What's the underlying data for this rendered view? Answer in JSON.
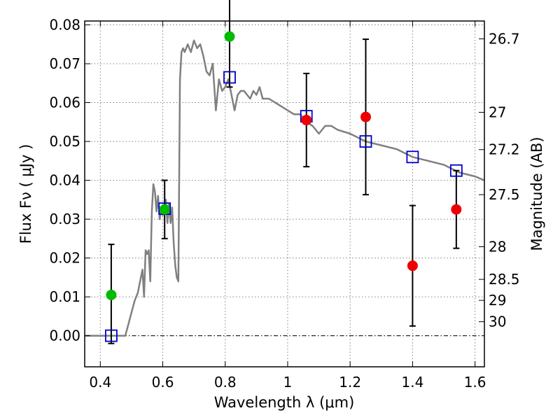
{
  "chart_data": {
    "type": "scatter",
    "title": "",
    "xlabel": "Wavelength  λ (μm)",
    "ylabel": "Flux  Fν  ( μJy )",
    "ylabel2": "Magnitude (AB)",
    "xlim": [
      0.35,
      1.63
    ],
    "ylim": [
      -0.008,
      0.081
    ],
    "xticks": [
      0.4,
      0.6,
      0.8,
      1.0,
      1.2,
      1.4,
      1.6
    ],
    "xtick_labels": [
      "0.4",
      "0.6",
      "0.8",
      "1",
      "1.2",
      "1.4",
      "1.6"
    ],
    "yticks": [
      0.0,
      0.01,
      0.02,
      0.03,
      0.04,
      0.05,
      0.06,
      0.07,
      0.08
    ],
    "ytick_labels": [
      "0.00",
      "0.01",
      "0.02",
      "0.03",
      "0.04",
      "0.05",
      "0.06",
      "0.07",
      "0.08"
    ],
    "right_axis_ticks": [
      {
        "label": "26.7",
        "flux": 0.0764
      },
      {
        "label": "27",
        "flux": 0.0575
      },
      {
        "label": "27.2",
        "flux": 0.0479
      },
      {
        "label": "27.5",
        "flux": 0.0363
      },
      {
        "label": "28",
        "flux": 0.0229
      },
      {
        "label": "28.5",
        "flux": 0.0145
      },
      {
        "label": "29",
        "flux": 0.0091
      },
      {
        "label": "30",
        "flux": 0.0036
      }
    ],
    "grid": true,
    "colors": {
      "model": "#808080",
      "model_fluxes": "#0000cc",
      "measured_optical": "#00bb00",
      "measured_nir": "#ee0000",
      "errorbar": "#000000",
      "zero_line": "#000000",
      "grid": "#808080"
    },
    "series": [
      {
        "kind": "model-spectrum",
        "x": [
          0.35,
          0.48,
          0.49,
          0.5,
          0.51,
          0.52,
          0.53,
          0.535,
          0.54,
          0.545,
          0.55,
          0.555,
          0.56,
          0.565,
          0.57,
          0.575,
          0.58,
          0.585,
          0.59,
          0.595,
          0.6,
          0.605,
          0.61,
          0.615,
          0.62,
          0.625,
          0.63,
          0.635,
          0.64,
          0.645,
          0.65,
          0.655,
          0.66,
          0.665,
          0.67,
          0.68,
          0.69,
          0.7,
          0.71,
          0.72,
          0.73,
          0.74,
          0.75,
          0.76,
          0.77,
          0.78,
          0.79,
          0.8,
          0.81,
          0.82,
          0.83,
          0.84,
          0.85,
          0.86,
          0.87,
          0.88,
          0.89,
          0.9,
          0.91,
          0.92,
          0.94,
          0.96,
          0.98,
          1.0,
          1.02,
          1.04,
          1.06,
          1.08,
          1.1,
          1.12,
          1.14,
          1.16,
          1.2,
          1.25,
          1.3,
          1.35,
          1.4,
          1.45,
          1.5,
          1.55,
          1.6,
          1.63
        ],
        "y": [
          0.0,
          0.0,
          0.003,
          0.006,
          0.009,
          0.011,
          0.015,
          0.017,
          0.01,
          0.022,
          0.021,
          0.022,
          0.014,
          0.032,
          0.039,
          0.037,
          0.032,
          0.036,
          0.03,
          0.033,
          0.031,
          0.033,
          0.035,
          0.029,
          0.034,
          0.029,
          0.033,
          0.024,
          0.018,
          0.015,
          0.014,
          0.066,
          0.073,
          0.074,
          0.073,
          0.075,
          0.073,
          0.076,
          0.074,
          0.075,
          0.072,
          0.068,
          0.067,
          0.07,
          0.058,
          0.066,
          0.063,
          0.064,
          0.066,
          0.062,
          0.058,
          0.062,
          0.063,
          0.063,
          0.062,
          0.061,
          0.063,
          0.062,
          0.064,
          0.061,
          0.061,
          0.06,
          0.059,
          0.058,
          0.057,
          0.057,
          0.055,
          0.054,
          0.052,
          0.054,
          0.054,
          0.053,
          0.052,
          0.05,
          0.049,
          0.048,
          0.046,
          0.045,
          0.044,
          0.042,
          0.041,
          0.04
        ]
      },
      {
        "kind": "model-band-fluxes",
        "x": [
          0.435,
          0.606,
          0.814,
          1.06,
          1.25,
          1.4,
          1.54
        ],
        "y": [
          0.0,
          0.0327,
          0.0665,
          0.0565,
          0.05,
          0.046,
          0.0425
        ]
      },
      {
        "kind": "measured-optical",
        "x": [
          0.435,
          0.606,
          0.814
        ],
        "y": [
          0.0105,
          0.0325,
          0.077
        ],
        "err_low": [
          0.0125,
          0.0075,
          0.013
        ],
        "err_high": [
          0.013,
          0.0075,
          0.013
        ]
      },
      {
        "kind": "measured-nir",
        "x": [
          1.06,
          1.25,
          1.4,
          1.54
        ],
        "y": [
          0.0555,
          0.0563,
          0.018,
          0.0325
        ],
        "err_low": [
          0.012,
          0.02,
          0.0155,
          0.01
        ],
        "err_high": [
          0.012,
          0.02,
          0.0155,
          0.01
        ]
      }
    ]
  }
}
